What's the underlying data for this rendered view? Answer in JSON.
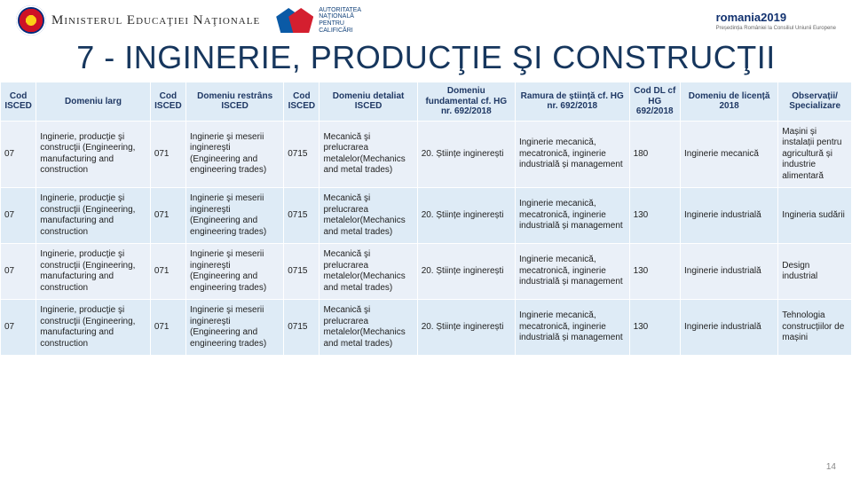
{
  "header": {
    "ministry": "Ministerul Educaţiei Naţionale",
    "anc": {
      "l1": "Autoritatea",
      "l2": "Naţională",
      "l3": "pentru",
      "l4": "Calificări"
    },
    "ro2019": {
      "main": "romania2019",
      ".eu": ".eu",
      "sub": "Președinția României la Consiliul Uniunii Europene"
    }
  },
  "title": "7 - INGINERIE, PRODUCŢIE ŞI CONSTRUCŢII",
  "columns": [
    "Cod ISCED",
    "Domeniu larg",
    "Cod ISCED",
    "Domeniu restrâns ISCED",
    "Cod ISCED",
    "Domeniu detaliat ISCED",
    "Domeniu fundamental cf. HG nr. 692/2018",
    "Ramura de știință cf. HG nr. 692/2018",
    "Cod DL cf HG 692/2018",
    "Domeniu de licență 2018",
    "Observații/ Specializare"
  ],
  "rows": [
    {
      "c0": "07",
      "c1": "Inginerie, producţie şi construcţii (Engineering, manufacturing and construction",
      "c2": "071",
      "c3": "Inginerie şi meserii inginereşti (Engineering and engineering trades)",
      "c4": "0715",
      "c5": "Mecanică şi prelucrarea metalelor(Mechanics and metal trades)",
      "c6": "20. Științe inginerești",
      "c7": "Inginerie mecanică, mecatronică, inginerie industrială și management",
      "c8": "180",
      "c9": "Inginerie mecanică",
      "c10": "Mașini și instalații pentru agricultură și industrie alimentară"
    },
    {
      "c0": "07",
      "c1": "Inginerie, producţie şi construcţii (Engineering, manufacturing and construction",
      "c2": "071",
      "c3": "Inginerie şi meserii inginereşti (Engineering and engineering trades)",
      "c4": "0715",
      "c5": "Mecanică şi prelucrarea metalelor(Mechanics and metal trades)",
      "c6": "20. Științe inginerești",
      "c7": "Inginerie mecanică, mecatronică, inginerie industrială și management",
      "c8": "130",
      "c9": "Inginerie industrială",
      "c10": "Ingineria sudării"
    },
    {
      "c0": "07",
      "c1": "Inginerie, producţie şi construcţii (Engineering, manufacturing and construction",
      "c2": "071",
      "c3": "Inginerie şi meserii inginereşti (Engineering and engineering trades)",
      "c4": "0715",
      "c5": "Mecanică şi prelucrarea metalelor(Mechanics and metal trades)",
      "c6": "20. Științe inginerești",
      "c7": "Inginerie mecanică, mecatronică, inginerie industrială și management",
      "c8": "130",
      "c9": "Inginerie industrială",
      "c10": "Design industrial"
    },
    {
      "c0": "07",
      "c1": "Inginerie, producţie şi construcţii (Engineering, manufacturing and construction",
      "c2": "071",
      "c3": "Inginerie şi meserii inginereşti (Engineering and engineering trades)",
      "c4": "0715",
      "c5": "Mecanică şi prelucrarea metalelor(Mechanics and metal trades)",
      "c6": "20. Științe inginerești",
      "c7": "Inginerie mecanică, mecatronică, inginerie industrială și management",
      "c8": "130",
      "c9": "Inginerie industrială",
      "c10": "Tehnologia construcțiilor de mașini"
    }
  ],
  "pagenum": "14"
}
